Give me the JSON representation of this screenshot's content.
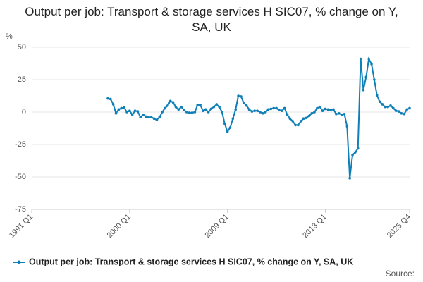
{
  "chart_data": {
    "type": "line",
    "title": "Output per job: Transport & storage services H SIC07, % change on Y, SA, UK",
    "y_label": "%",
    "source": "Source:",
    "categories": [
      "1991 Q1",
      null,
      null,
      null,
      null,
      null,
      null,
      null,
      null,
      null,
      null,
      null,
      null,
      null,
      null,
      null,
      null,
      null,
      null,
      null,
      null,
      null,
      null,
      null,
      null,
      null,
      null,
      null,
      null,
      null,
      null,
      null,
      null,
      null,
      null,
      null,
      "2000 Q1",
      null,
      null,
      null,
      null,
      null,
      null,
      null,
      null,
      null,
      null,
      null,
      null,
      null,
      null,
      null,
      null,
      null,
      null,
      null,
      null,
      null,
      null,
      null,
      null,
      null,
      null,
      null,
      null,
      null,
      null,
      null,
      null,
      null,
      null,
      null,
      "2009 Q1",
      null,
      null,
      null,
      null,
      null,
      null,
      null,
      null,
      null,
      null,
      null,
      null,
      null,
      null,
      null,
      null,
      null,
      null,
      null,
      null,
      null,
      null,
      null,
      null,
      null,
      null,
      null,
      null,
      null,
      null,
      null,
      null,
      null,
      null,
      null,
      "2018 Q1",
      null,
      null,
      null,
      null,
      null,
      null,
      null,
      null,
      null,
      null,
      null,
      null,
      null,
      null,
      null,
      null,
      null,
      null,
      null,
      null,
      null,
      null,
      null,
      null,
      null,
      null,
      null,
      null,
      null,
      null,
      "2025 Q4"
    ],
    "series": [
      {
        "name": "Output per job: Transport & storage services H SIC07, % change on Y, SA, UK",
        "color": "#0f7fb8",
        "values": [
          null,
          null,
          null,
          null,
          null,
          null,
          null,
          null,
          null,
          null,
          null,
          null,
          null,
          null,
          null,
          null,
          null,
          null,
          null,
          null,
          null,
          null,
          null,
          null,
          null,
          null,
          null,
          null,
          10.5,
          10,
          6,
          -1,
          2,
          3,
          3.5,
          0,
          1,
          -2,
          1,
          0.5,
          -4,
          -2,
          -3.5,
          -4,
          -4,
          -5,
          -6,
          -4,
          0,
          3,
          5,
          8.5,
          7.5,
          4,
          2,
          4,
          1.5,
          0,
          -0.5,
          -0.5,
          0,
          5.5,
          5.5,
          1,
          2,
          0,
          2.5,
          4,
          6,
          4,
          0,
          -9,
          -15,
          -12,
          -5,
          2,
          12.5,
          12,
          7,
          5,
          2,
          0.5,
          1,
          1,
          0,
          -1,
          0,
          2,
          2.5,
          3,
          3,
          1.5,
          1,
          3,
          -2,
          -5,
          -7,
          -10,
          -10,
          -7,
          -5,
          -4.5,
          -3,
          -1,
          0,
          3,
          4,
          1,
          2.5,
          2,
          1.5,
          2,
          -1.5,
          -1,
          -2,
          -1.5,
          -11,
          -51,
          -33,
          -31,
          -28,
          41,
          17,
          27,
          41,
          37,
          25,
          13,
          8,
          6,
          4,
          4,
          5,
          3,
          1,
          0.5,
          -1,
          -1.5,
          2,
          3
        ]
      }
    ],
    "ylim": [
      -75,
      50
    ],
    "yticks": [
      -75,
      -50,
      -25,
      0,
      25,
      50
    ],
    "grid": true,
    "legend": "bottom"
  }
}
